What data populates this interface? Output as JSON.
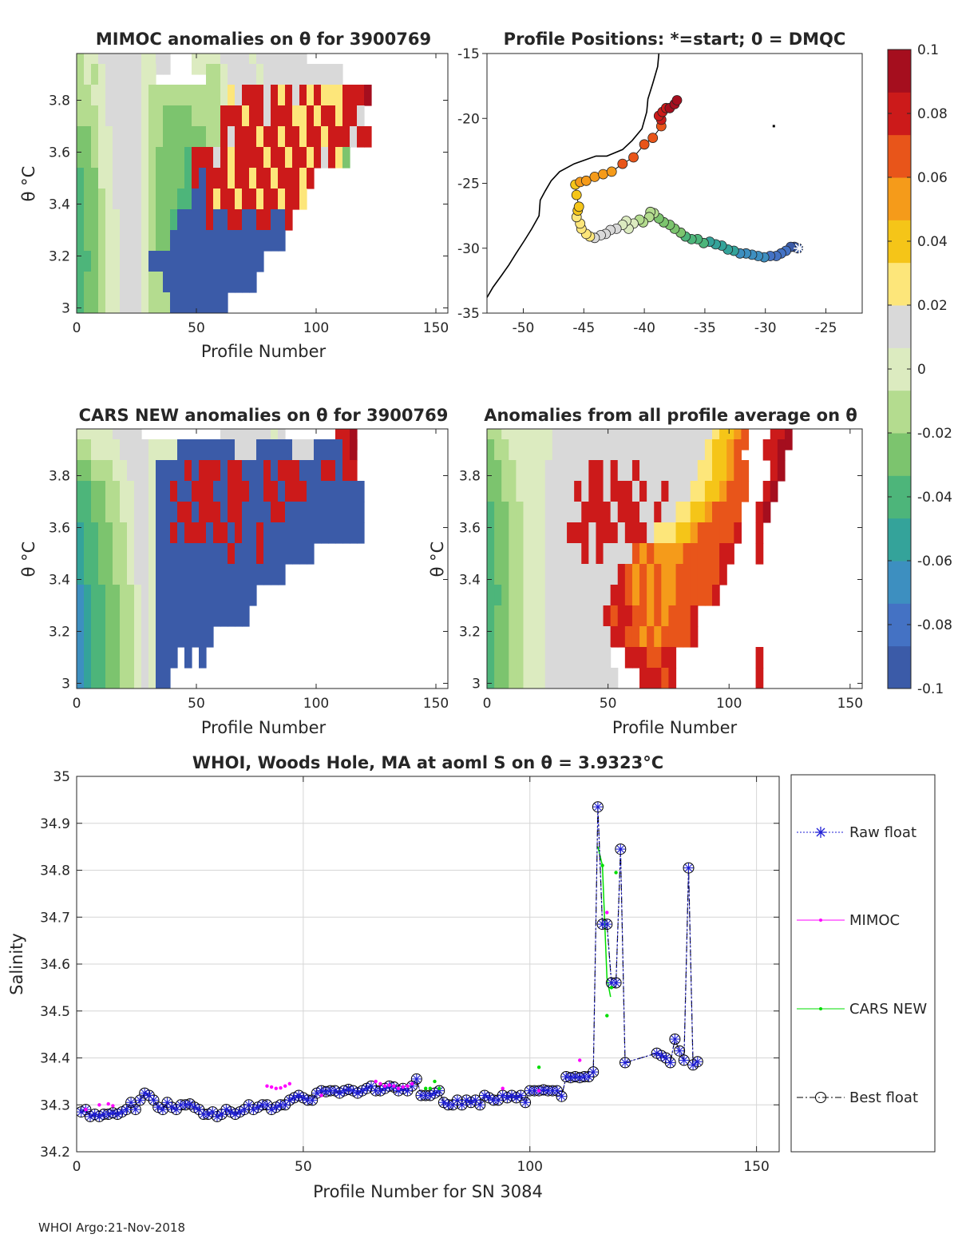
{
  "palette": [
    "#3b5ba8",
    "#4472c4",
    "#3d8fc0",
    "#34a39a",
    "#4db57a",
    "#7cc46e",
    "#b4dc8f",
    "#dcebc0",
    "#d9d9d9",
    "#fde67a",
    "#f5c518",
    "#f59b1a",
    "#e8551a",
    "#cc1a1a",
    "#a50e1e"
  ],
  "figure": {
    "timestamp": "WHOI Argo:21-Nov-2018"
  },
  "colorbar": {
    "ticks": [
      0.1,
      0.08,
      0.06,
      0.04,
      0.02,
      0,
      -0.02,
      -0.04,
      -0.06,
      -0.08,
      -0.1
    ],
    "tick_labels": [
      "0.1",
      "0.08",
      "0.06",
      "0.04",
      "0.02",
      "0",
      "-0.02",
      "-0.04",
      "-0.06",
      "-0.08",
      "-0.1"
    ],
    "range": [
      -0.1,
      0.1
    ]
  },
  "chart_data": [
    {
      "id": "mimoc",
      "type": "heatmap",
      "title": "MIMOC anomalies on θ  for 3900769",
      "xlabel": "Profile Number",
      "ylabel": "θ °C",
      "xlim": [
        0,
        155
      ],
      "ylim": [
        2.98,
        3.98
      ],
      "xticks": [
        0,
        50,
        100,
        150
      ],
      "yticks": [
        3,
        3.2,
        3.4,
        3.6,
        3.8
      ],
      "x_cell_width": 3,
      "y_bins": [
        3.94,
        3.86,
        3.78,
        3.7,
        3.62,
        3.54,
        3.46,
        3.38,
        3.3,
        3.22,
        3.14,
        3.06,
        2.98
      ],
      "rows": [
        "6778888887788...7777888878888888............",
        "67678888877.......6678888788888888888....",
        "66778888876666666666798ddd8d9d8d9d999ddde",
        "66678888876655556666ddd9dd8ddd99d9dd9dd8",
        "55677888876655555566d8ddd9dd9dd9dd9ddd8dd",
        "5567788887655554ddd8d9dddd9dd9dd9d8d95",
        "4557788887655554d0ddd9dd9dd9ddd9d",
        "455678888765554400d9dd9dd9dd9dd9",
        "455677888765540000d00dd00dd00d",
        "45567788876550000000000000000",
        "44567788870000000000000000",
        "4556778887660000000000000",
        "455677888766600000000"
      ]
    },
    {
      "id": "cars",
      "type": "heatmap",
      "title": "CARS NEW anomalies on θ for 3900769",
      "xlabel": "Profile Number",
      "ylabel": "θ °C",
      "xlim": [
        0,
        155
      ],
      "ylim": [
        2.98,
        3.98
      ],
      "xticks": [
        0,
        50,
        100,
        150
      ],
      "yticks": [
        3,
        3.2,
        3.4,
        3.6,
        3.8
      ],
      "x_cell_width": 3,
      "y_bins": [
        3.94,
        3.86,
        3.78,
        3.7,
        3.62,
        3.54,
        3.46,
        3.38,
        3.3,
        3.22,
        3.14,
        3.06,
        2.98
      ],
      "rows": [
        "777778888...........888888878.......dde",
        "6677778888777700000000888000008880000de",
        "556667788870000d0ddd0dd000d0ddd000dd0dd",
        "4455667788700d00ddd00ddd00dd0ddd00000000",
        "44556677887000dd0ddd0dd0000dd00000000000",
        "3445566788700d0ddd0dd0d00d00000000000000",
        "344556678870000000000d000d0000000",
        "34455667887000000000000000000",
        "2344556678700000000000000",
        "234455667870000000000000",
        "2344556678700000000",
        "23445566787000.0.0",
        "2344556678700"
      ]
    },
    {
      "id": "avg",
      "type": "heatmap",
      "title": "Anomalies from all profile average on θ",
      "xlabel": "Profile Number",
      "ylabel": "θ °C",
      "xlim": [
        0,
        155
      ],
      "ylim": [
        2.98,
        3.98
      ],
      "xticks": [
        0,
        50,
        100,
        150
      ],
      "yticks": [
        3,
        3.2,
        3.4,
        3.6,
        3.8
      ],
      "x_cell_width": 3,
      "y_bins": [
        3.94,
        3.86,
        3.78,
        3.7,
        3.62,
        3.54,
        3.46,
        3.38,
        3.3,
        3.22,
        3.14,
        3.06,
        2.98
      ],
      "rows": [
        "66777777788888888888888888888889aabc...dde",
        "5667777778888888888888888888889aabc...dde",
        "55667777888888dd8d88d8888888899aabcc...de",
        "556677778888d8dd8ddd8d88d88899aabccc..de",
        "4556677788888dddd8ddd88d8899aabcccc..de",
        "45566777888ddd8ddd8ddd8999aabcccccd..d",
        "4556677788888d8d8888cbcbbbbcccccdd...d",
        "455667778888888888dcbcbcbbccccccd",
        "44566777888888888ddcbcbcbbcccccd",
        "4556677788888888dcddccbcbcccd",
        "45566777888888888ddccbcbccccd",
        "45566777888888888..dddccdd...........d",
        "455667778888888888...dddcd...........d"
      ]
    },
    {
      "id": "positions",
      "type": "scatter",
      "title": "Profile Positions: *=start; 0 = DMQC",
      "xlim": [
        -53,
        -22
      ],
      "ylim": [
        -35,
        -15
      ],
      "xticks": [
        -50,
        -45,
        -40,
        -35,
        -30,
        -25
      ],
      "yticks": [
        -15,
        -20,
        -25,
        -30,
        -35
      ],
      "xtick_labels": [
        "-50",
        "-45",
        "-40",
        "-35",
        "-30",
        "-25"
      ],
      "ytick_labels": [
        "-15",
        "-20",
        "-25",
        "-30",
        "-35"
      ],
      "coastline_lon": [
        -53,
        -52.5,
        -51.8,
        -51.2,
        -50.6,
        -49.9,
        -49.3,
        -48.7,
        -48.6,
        -48.2,
        -47.7,
        -47.0,
        -45.8,
        -44.6,
        -44.0,
        -43.1,
        -41.8,
        -41.0,
        -40.2,
        -39.8,
        -39.7,
        -39.3,
        -38.9,
        -38.8
      ],
      "coastline_lat": [
        -33.8,
        -33.0,
        -32.1,
        -31.3,
        -30.4,
        -29.4,
        -28.5,
        -27.5,
        -26.3,
        -25.6,
        -24.8,
        -24.1,
        -23.5,
        -23.1,
        -22.9,
        -22.9,
        -22.4,
        -21.7,
        -20.8,
        -19.5,
        -18.5,
        -17.3,
        -16.0,
        -15.0
      ],
      "island_lon": -29.4,
      "island_lat": -20.5,
      "track_lon": [
        -27.3,
        -27.6,
        -27.9,
        -28.3,
        -28.7,
        -29.1,
        -29.6,
        -30.1,
        -30.6,
        -31.1,
        -31.6,
        -32.1,
        -32.6,
        -33.1,
        -33.6,
        -34.1,
        -34.6,
        -35.1,
        -35.6,
        -36.1,
        -36.6,
        -37.0,
        -37.5,
        -37.9,
        -38.4,
        -38.8,
        -39.2,
        -39.5,
        -39.6,
        -40.1,
        -40.4,
        -40.9,
        -41.3,
        -41.5,
        -41.8,
        -42.3,
        -42.8,
        -43.2,
        -43.6,
        -44.1,
        -44.5,
        -44.8,
        -45.2,
        -45.3,
        -45.6,
        -45.5,
        -45.4,
        -45.6,
        -45.7,
        -45.3,
        -44.8,
        -44.1,
        -43.4,
        -42.7,
        -41.8,
        -40.9,
        -40.0,
        -39.3,
        -38.6,
        -38.6,
        -38.8,
        -38.5,
        -38.2,
        -37.9,
        -37.5,
        -37.3
      ],
      "track_lat": [
        -30.0,
        -29.9,
        -29.9,
        -30.2,
        -30.4,
        -30.6,
        -30.6,
        -30.7,
        -30.6,
        -30.5,
        -30.4,
        -30.4,
        -30.2,
        -30.1,
        -29.8,
        -29.7,
        -29.5,
        -29.6,
        -29.3,
        -29.3,
        -29.1,
        -28.8,
        -28.5,
        -28.2,
        -28.0,
        -27.7,
        -27.3,
        -27.2,
        -27.6,
        -28.0,
        -27.8,
        -28.1,
        -28.5,
        -27.9,
        -28.2,
        -28.5,
        -28.6,
        -28.9,
        -29.0,
        -29.2,
        -29.1,
        -28.9,
        -28.5,
        -28.1,
        -27.6,
        -27.1,
        -26.8,
        -25.9,
        -25.1,
        -24.9,
        -24.8,
        -24.5,
        -24.3,
        -24.1,
        -23.5,
        -23.0,
        -22.0,
        -21.5,
        -20.6,
        -20.1,
        -19.8,
        -19.5,
        -19.2,
        -19.2,
        -18.9,
        -18.6
      ],
      "start_lon": -27.2,
      "start_lat": -30.0
    },
    {
      "id": "salinity",
      "type": "line",
      "title": "WHOI, Woods Hole, MA at aoml S on θ = 3.9323°C",
      "xlabel": "Profile Number for SN 3084",
      "ylabel": "Salinity",
      "xlim": [
        0,
        155
      ],
      "ylim": [
        34.2,
        35
      ],
      "xticks": [
        0,
        50,
        100,
        150
      ],
      "yticks": [
        34.2,
        34.3,
        34.4,
        34.5,
        34.6,
        34.7,
        34.8,
        34.9,
        35
      ],
      "ytick_labels": [
        "34.2",
        "34.3",
        "34.4",
        "34.5",
        "34.6",
        "34.7",
        "34.8",
        "34.9",
        "35"
      ],
      "legend": [
        "Raw float",
        "MIMOC",
        "CARS NEW",
        "Best float"
      ],
      "series_colors": [
        "#1f1fd6",
        "#ff00ff",
        "#00dd00",
        "#000000"
      ],
      "float_x": [
        1,
        2,
        3,
        4,
        5,
        6,
        7,
        8,
        9,
        10,
        11,
        12,
        13,
        14,
        15,
        16,
        17,
        18,
        19,
        20,
        21,
        22,
        23,
        24,
        25,
        26,
        27,
        28,
        29,
        30,
        31,
        32,
        33,
        34,
        35,
        36,
        37,
        38,
        39,
        40,
        41,
        42,
        43,
        44,
        45,
        46,
        47,
        48,
        49,
        50,
        51,
        52,
        53,
        54,
        55,
        56,
        57,
        58,
        59,
        60,
        61,
        62,
        63,
        64,
        65,
        66,
        67,
        68,
        69,
        70,
        71,
        72,
        73,
        74,
        75,
        76,
        77,
        78,
        79,
        80,
        81,
        82,
        83,
        84,
        85,
        86,
        87,
        88,
        89,
        90,
        91,
        92,
        93,
        94,
        95,
        96,
        97,
        98,
        99,
        100,
        101,
        102,
        103,
        104,
        105,
        106,
        107,
        108,
        109,
        110,
        111,
        112,
        113,
        114,
        115,
        116,
        117,
        118,
        119,
        120,
        121,
        128,
        129,
        130,
        131,
        132,
        133,
        134,
        135,
        136,
        137,
        138
      ],
      "float_y": [
        34.285,
        34.29,
        34.275,
        34.28,
        34.275,
        34.28,
        34.28,
        34.283,
        34.28,
        34.285,
        34.29,
        34.305,
        34.29,
        34.31,
        34.325,
        34.32,
        34.31,
        34.295,
        34.29,
        34.305,
        34.295,
        34.29,
        34.3,
        34.3,
        34.302,
        34.295,
        34.29,
        34.28,
        34.28,
        34.285,
        34.275,
        34.28,
        34.29,
        34.285,
        34.28,
        34.285,
        34.29,
        34.3,
        34.29,
        34.295,
        34.3,
        34.3,
        34.29,
        34.295,
        34.3,
        34.3,
        34.31,
        34.315,
        34.32,
        34.315,
        34.31,
        34.31,
        34.325,
        34.33,
        34.328,
        34.33,
        34.33,
        34.325,
        34.33,
        34.333,
        34.33,
        34.325,
        34.33,
        34.335,
        34.34,
        34.33,
        34.33,
        34.335,
        34.34,
        34.338,
        34.33,
        34.335,
        34.33,
        34.34,
        34.355,
        34.32,
        34.32,
        34.32,
        34.325,
        34.33,
        34.305,
        34.3,
        34.3,
        34.31,
        34.3,
        34.31,
        34.305,
        34.31,
        34.3,
        34.32,
        34.315,
        34.31,
        34.31,
        34.32,
        34.315,
        34.32,
        34.315,
        34.32,
        34.305,
        34.33,
        34.33,
        34.33,
        34.332,
        34.33,
        34.33,
        34.33,
        34.318,
        34.36,
        34.358,
        34.36,
        34.358,
        34.36,
        34.36,
        34.37,
        34.935,
        34.685,
        34.685,
        34.56,
        34.56,
        34.845,
        34.39,
        34.41,
        34.405,
        34.4,
        34.39,
        34.44,
        34.415,
        34.395,
        34.805,
        34.385,
        34.392
      ],
      "mimoc_x": [
        2,
        5,
        7,
        8,
        42,
        43,
        44,
        45,
        46,
        47,
        54,
        66,
        67,
        68,
        69,
        70,
        71,
        72,
        73,
        74,
        94,
        102,
        111,
        117
      ],
      "mimoc_y": [
        34.29,
        34.3,
        34.302,
        34.298,
        34.34,
        34.338,
        34.335,
        34.336,
        34.34,
        34.345,
        34.32,
        34.35,
        34.345,
        34.34,
        34.342,
        34.34,
        34.335,
        34.338,
        34.34,
        34.345,
        34.335,
        34.33,
        34.395,
        34.71
      ],
      "cars_x": [
        77,
        78,
        79,
        80,
        102,
        116,
        117,
        118,
        119
      ],
      "cars_y": [
        34.335,
        34.335,
        34.35,
        34.335,
        34.38,
        34.81,
        34.49,
        34.55,
        34.795
      ],
      "cars_line_x": [
        115,
        116,
        117,
        117.8
      ],
      "cars_line_y": [
        34.85,
        34.81,
        34.57,
        34.53
      ]
    }
  ]
}
